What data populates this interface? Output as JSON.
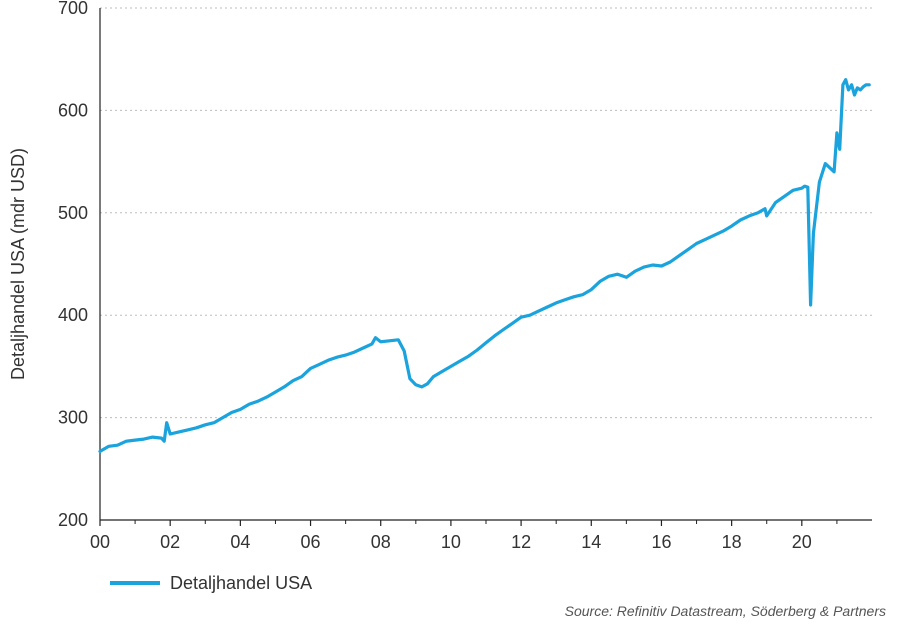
{
  "chart_data": {
    "type": "line",
    "ylabel": "Detaljhandel USA (mdr USD)",
    "ylim": [
      200,
      700
    ],
    "yticks": [
      200,
      300,
      400,
      500,
      600,
      700
    ],
    "xlim": [
      2000,
      2022
    ],
    "xticks": [
      {
        "value": 2000,
        "label": "00"
      },
      {
        "value": 2002,
        "label": "02"
      },
      {
        "value": 2004,
        "label": "04"
      },
      {
        "value": 2006,
        "label": "06"
      },
      {
        "value": 2008,
        "label": "08"
      },
      {
        "value": 2010,
        "label": "10"
      },
      {
        "value": 2012,
        "label": "12"
      },
      {
        "value": 2014,
        "label": "14"
      },
      {
        "value": 2016,
        "label": "16"
      },
      {
        "value": 2018,
        "label": "18"
      },
      {
        "value": 2020,
        "label": "20"
      }
    ],
    "grid": true,
    "legend_position": "bottom-left",
    "color": "#1aa3dc",
    "series": [
      {
        "name": "Detaljhandel USA",
        "x": [
          2000.0,
          2000.25,
          2000.5,
          2000.75,
          2001.0,
          2001.25,
          2001.5,
          2001.75,
          2001.83,
          2001.9,
          2002.0,
          2002.25,
          2002.5,
          2002.75,
          2003.0,
          2003.25,
          2003.5,
          2003.75,
          2004.0,
          2004.25,
          2004.5,
          2004.75,
          2005.0,
          2005.25,
          2005.5,
          2005.75,
          2006.0,
          2006.25,
          2006.5,
          2006.75,
          2007.0,
          2007.25,
          2007.5,
          2007.75,
          2007.85,
          2008.0,
          2008.25,
          2008.5,
          2008.67,
          2008.83,
          2009.0,
          2009.17,
          2009.33,
          2009.5,
          2009.75,
          2010.0,
          2010.25,
          2010.5,
          2010.75,
          2011.0,
          2011.25,
          2011.5,
          2011.75,
          2012.0,
          2012.25,
          2012.5,
          2012.75,
          2013.0,
          2013.25,
          2013.5,
          2013.75,
          2014.0,
          2014.25,
          2014.5,
          2014.75,
          2015.0,
          2015.25,
          2015.5,
          2015.75,
          2016.0,
          2016.25,
          2016.5,
          2016.75,
          2017.0,
          2017.25,
          2017.5,
          2017.75,
          2018.0,
          2018.25,
          2018.5,
          2018.75,
          2018.95,
          2019.0,
          2019.25,
          2019.5,
          2019.75,
          2020.0,
          2020.08,
          2020.17,
          2020.25,
          2020.33,
          2020.5,
          2020.67,
          2020.83,
          2020.92,
          2021.0,
          2021.08,
          2021.17,
          2021.25,
          2021.33,
          2021.42,
          2021.5,
          2021.58,
          2021.67,
          2021.75,
          2021.83,
          2021.92
        ],
        "values": [
          267,
          272,
          273,
          277,
          278,
          279,
          281,
          280,
          277,
          295,
          284,
          286,
          288,
          290,
          293,
          295,
          300,
          305,
          308,
          313,
          316,
          320,
          325,
          330,
          336,
          340,
          348,
          352,
          356,
          359,
          361,
          364,
          368,
          372,
          378,
          374,
          375,
          376,
          365,
          338,
          332,
          330,
          333,
          340,
          345,
          350,
          355,
          360,
          366,
          373,
          380,
          386,
          392,
          398,
          400,
          404,
          408,
          412,
          415,
          418,
          420,
          425,
          433,
          438,
          440,
          437,
          443,
          447,
          449,
          448,
          452,
          458,
          464,
          470,
          474,
          478,
          482,
          487,
          493,
          497,
          500,
          504,
          497,
          510,
          516,
          522,
          524,
          526,
          525,
          410,
          480,
          530,
          548,
          543,
          540,
          578,
          562,
          625,
          630,
          620,
          625,
          615,
          622,
          620,
          623,
          625,
          625
        ]
      }
    ]
  },
  "source": "Source: Refinitiv Datastream, Söderberg & Partners"
}
